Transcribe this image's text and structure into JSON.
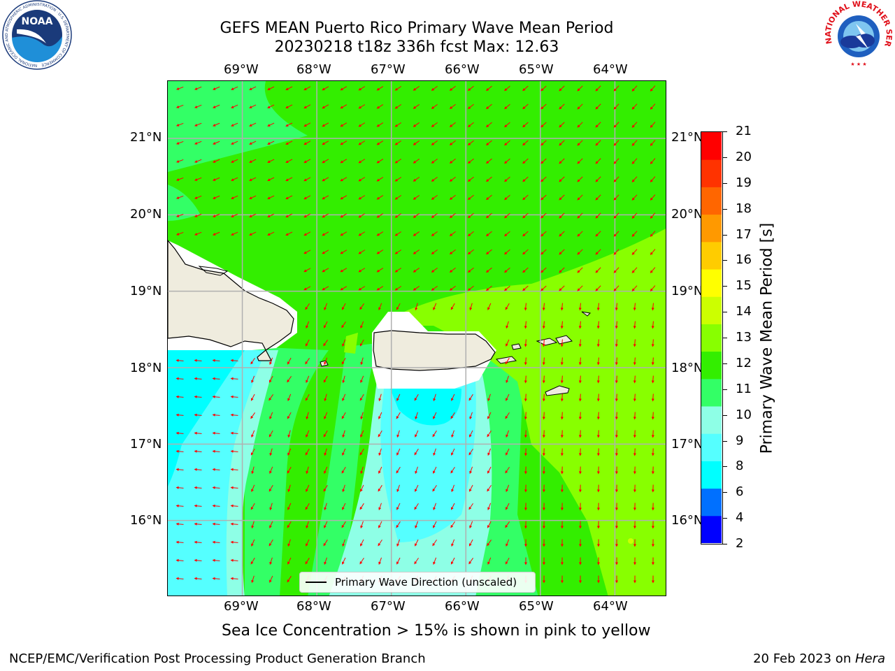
{
  "title": {
    "line1": "GEFS MEAN Puerto Rico Primary Wave Mean Period",
    "line2": "20230218 t18z 336h fcst   Max: 12.63"
  },
  "chart_data": {
    "type": "heatmap",
    "variable": "Primary Wave Mean Period",
    "units": "[s]",
    "x_ticks": [
      "69°W",
      "68°W",
      "67°W",
      "66°W",
      "65°W",
      "64°W"
    ],
    "y_ticks": [
      "21°N",
      "20°N",
      "19°N",
      "18°N",
      "17°N",
      "16°N"
    ],
    "x_range": [
      -70.0,
      -63.3
    ],
    "y_range": [
      15.0,
      21.75
    ],
    "grid": true,
    "max_value": 12.63,
    "colorbar": {
      "label": "Primary Wave Mean Period [s]",
      "levels": [
        2,
        4,
        6,
        8,
        9,
        10,
        11,
        12,
        13,
        14,
        15,
        16,
        17,
        18,
        19,
        20,
        21
      ],
      "colors": [
        "#0000ff",
        "#0070ff",
        "#00ffff",
        "#55ffff",
        "#8effe6",
        "#33ff66",
        "#33ee00",
        "#88ff00",
        "#ccff00",
        "#ffff00",
        "#ffcc00",
        "#ff9900",
        "#ff6600",
        "#ff3300",
        "#ff0000"
      ]
    },
    "legend": {
      "label": "Primary Wave Direction (unscaled)",
      "placement": "bottom-center"
    },
    "arrow_color": "#ff0000",
    "land_color": "#efecde"
  },
  "subtitle": "Sea Ice Concentration > 15% is shown in pink to yellow",
  "footer": {
    "left": "NCEP/EMC/Verification Post Processing Product Generation Branch",
    "date": "20 Feb 2023 on ",
    "host": "Hera"
  },
  "logos": {
    "noaa": "NOAA",
    "nws_text": "NATIONAL WEATHER SERVICE",
    "noaa_ring": "NATIONAL OCEANIC AND ATMOSPHERIC ADMINISTRATION · U.S. DEPARTMENT OF COMMERCE"
  }
}
